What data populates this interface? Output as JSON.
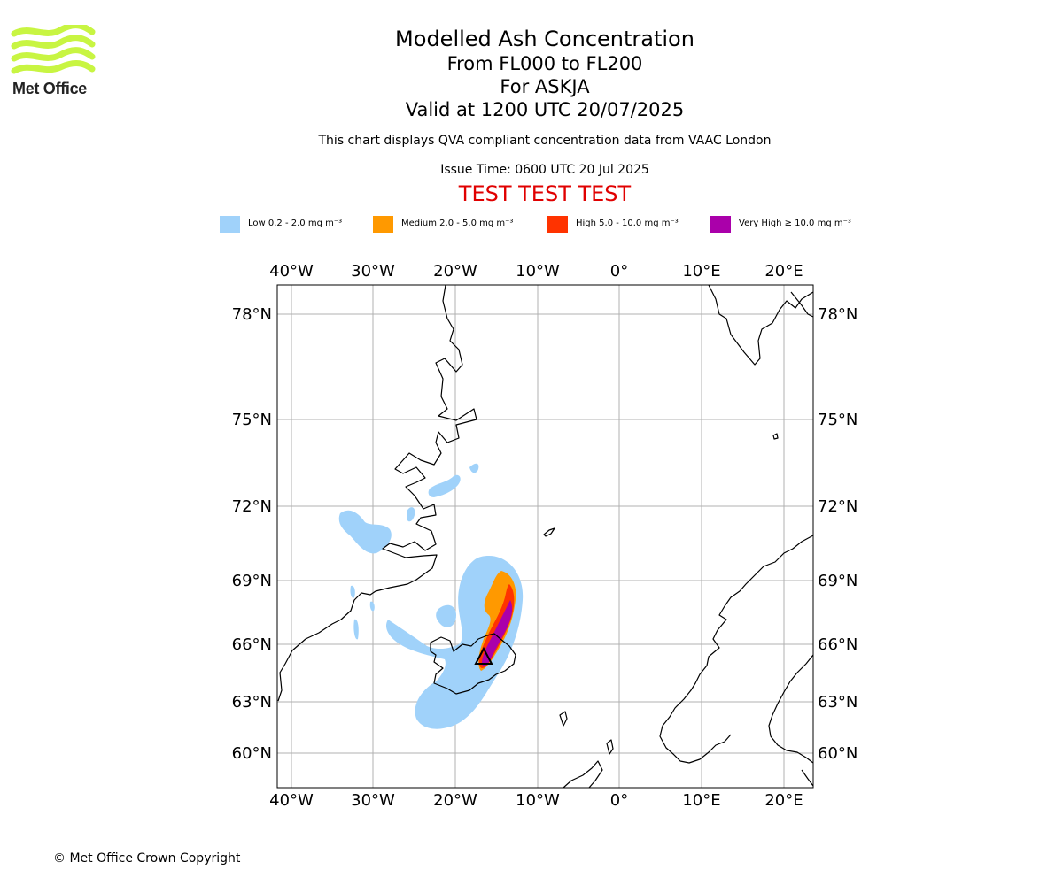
{
  "logo": {
    "text": "Met Office",
    "color": "#c8f542"
  },
  "title": {
    "main": "Modelled Ash Concentration",
    "levels": "From FL000 to FL200",
    "volcano": "For ASKJA",
    "valid": "Valid at 1200 UTC 20/07/2025",
    "subtitle": "This chart displays QVA compliant concentration data from VAAC London",
    "issue": "Issue Time: 0600 UTC 20 Jul 2025",
    "test_banner": "TEST TEST TEST"
  },
  "legend": [
    {
      "label": "Low 0.2 - 2.0 mg m⁻³",
      "color": "#a0d2fa"
    },
    {
      "label": "Medium 2.0 - 5.0 mg m⁻³",
      "color": "#ff9900"
    },
    {
      "label": "High 5.0 - 10.0 mg m⁻³",
      "color": "#ff3300"
    },
    {
      "label": "Very High ≥ 10.0 mg m⁻³",
      "color": "#aa00aa"
    }
  ],
  "map": {
    "lon_ticks": [
      "40°W",
      "30°W",
      "20°W",
      "10°W",
      "0°",
      "10°E",
      "20°E"
    ],
    "lat_ticks": [
      "78°N",
      "75°N",
      "72°N",
      "69°N",
      "66°N",
      "63°N",
      "60°N"
    ],
    "grid": true,
    "volcano_marker": "triangle"
  },
  "copyright": "© Met Office Crown Copyright"
}
